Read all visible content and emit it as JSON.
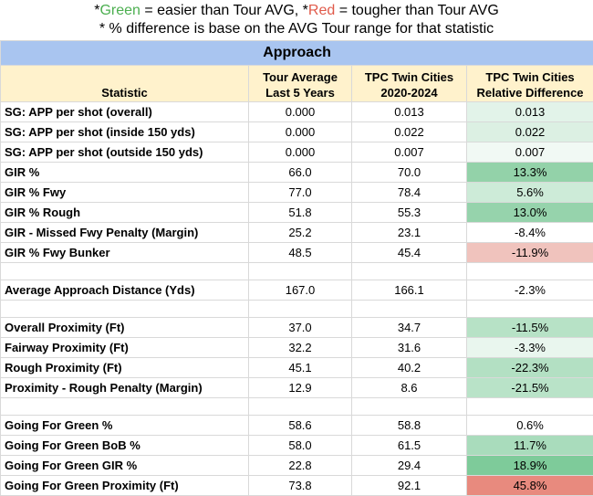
{
  "legend": {
    "line1_prefix": "*",
    "green_word": "Green",
    "line1_middle": " = easier than Tour AVG, *",
    "red_word": "Red",
    "line1_suffix": " = tougher than Tour AVG",
    "line2": "* % difference is base on the AVG Tour range for that statistic"
  },
  "section_title": "Approach",
  "headers": {
    "statistic": "Statistic",
    "tour_l1": "Tour Average",
    "tour_l2": "Last 5 Years",
    "tpc_l1": "TPC Twin Cities",
    "tpc_l2": "2020-2024",
    "diff_l1": "TPC Twin Cities",
    "diff_l2": "Relative Difference"
  },
  "rows": [
    {
      "stat": "SG: APP per shot (overall)",
      "tour": "0.000",
      "tpc": "0.013",
      "diff": "0.013",
      "color": "#e2f3e9"
    },
    {
      "stat": "SG: APP per shot (inside 150 yds)",
      "tour": "0.000",
      "tpc": "0.022",
      "diff": "0.022",
      "color": "#dcf0e3"
    },
    {
      "stat": "SG: APP per shot (outside 150 yds)",
      "tour": "0.000",
      "tpc": "0.007",
      "diff": "0.007",
      "color": "#f1f9f4"
    },
    {
      "stat": "GIR %",
      "tour": "66.0",
      "tpc": "70.0",
      "diff": "13.3%",
      "color": "#93d2a9"
    },
    {
      "stat": "GIR % Fwy",
      "tour": "77.0",
      "tpc": "78.4",
      "diff": "5.6%",
      "color": "#cdebd8"
    },
    {
      "stat": "GIR % Rough",
      "tour": "51.8",
      "tpc": "55.3",
      "diff": "13.0%",
      "color": "#96d3ac"
    },
    {
      "stat": "GIR - Missed Fwy Penalty (Margin)",
      "tour": "25.2",
      "tpc": "23.1",
      "diff": "-8.4%",
      "color": "#ffffff"
    },
    {
      "stat": "GIR % Fwy Bunker",
      "tour": "48.5",
      "tpc": "45.4",
      "diff": "-11.9%",
      "color": "#f0c3bd"
    },
    {
      "spacer": true
    },
    {
      "stat": "Average Approach Distance (Yds)",
      "tour": "167.0",
      "tpc": "166.1",
      "diff": "-2.3%",
      "color": "#ffffff"
    },
    {
      "spacer": true
    },
    {
      "stat": "Overall Proximity (Ft)",
      "tour": "37.0",
      "tpc": "34.7",
      "diff": "-11.5%",
      "color": "#b7e2c6"
    },
    {
      "stat": "Fairway Proximity (Ft)",
      "tour": "32.2",
      "tpc": "31.6",
      "diff": "-3.3%",
      "color": "#e9f6ee"
    },
    {
      "stat": "Rough Proximity (Ft)",
      "tour": "45.1",
      "tpc": "40.2",
      "diff": "-22.3%",
      "color": "#b3e0c3"
    },
    {
      "stat": "Proximity - Rough Penalty (Margin)",
      "tour": "12.9",
      "tpc": "8.6",
      "diff": "-21.5%",
      "color": "#b9e3c8"
    },
    {
      "spacer": true
    },
    {
      "stat": "Going For Green %",
      "tour": "58.6",
      "tpc": "58.8",
      "diff": "0.6%",
      "color": "#ffffff"
    },
    {
      "stat": "Going For Green BoB %",
      "tour": "58.0",
      "tpc": "61.5",
      "diff": "11.7%",
      "color": "#a9dcbc"
    },
    {
      "stat": "Going For Green GIR %",
      "tour": "22.8",
      "tpc": "29.4",
      "diff": "18.9%",
      "color": "#7ecb9a"
    },
    {
      "stat": "Going For Green Proximity (Ft)",
      "tour": "73.8",
      "tpc": "92.1",
      "diff": "45.8%",
      "color": "#e88a7e"
    }
  ]
}
